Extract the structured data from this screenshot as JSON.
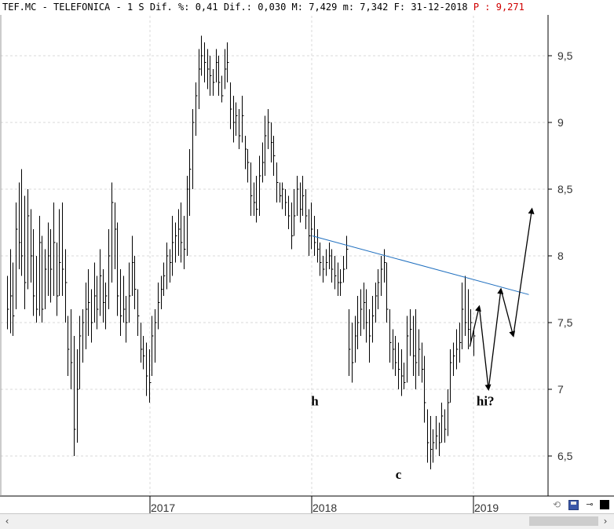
{
  "header": {
    "ticker": "TEF.MC - TELEFONICA -",
    "period": "1 S",
    "dif_pct_label": "Dif. %:",
    "dif_pct": "0,41",
    "dif_label": "Dif.:",
    "dif": "0,030",
    "max_label": "M:",
    "max": "7,429",
    "min_label": "m:",
    "min": "7,342",
    "date_label": "F:",
    "date": "31-12-2018",
    "p_label": "P :",
    "p_value": "9,271"
  },
  "icons": {
    "refresh": "refresh-icon",
    "save": "save-icon",
    "pin": "pin-icon",
    "black": "color-square-icon",
    "scroll_left": "chevron-left-icon",
    "scroll_right": "chevron-right-icon"
  },
  "glyphs": {
    "scroll_left": "‹",
    "scroll_right": "›",
    "refresh": "⟲",
    "pin": "⊸"
  },
  "chart_data": {
    "type": "bar",
    "subtype": "ohlc-weekly",
    "x_ticks": [
      "2017",
      "2018",
      "2019"
    ],
    "y_ticks": [
      "6,5",
      "7",
      "7,5",
      "8",
      "8,5",
      "9",
      "9,5"
    ],
    "y_tick_values": [
      6.5,
      7,
      7.5,
      8,
      8.5,
      9,
      9.5
    ],
    "ylim": [
      6.22,
      9.85
    ],
    "grid": true,
    "colors": {
      "bars": "#000000",
      "trendline": "#1f6fbf",
      "grid": "#d8d8d8"
    },
    "year_boundaries": [
      2017,
      2018,
      2019
    ],
    "date_range": [
      "2016-04",
      "2019-05"
    ],
    "weekly_bars": [
      [
        7.85,
        7.45,
        7.6
      ],
      [
        8.05,
        7.42,
        7.7
      ],
      [
        7.95,
        7.4,
        7.55
      ],
      [
        8.4,
        7.6,
        8.2
      ],
      [
        8.55,
        7.9,
        8.1
      ],
      [
        8.65,
        7.85,
        8.0
      ],
      [
        8.45,
        7.6,
        7.8
      ],
      [
        8.5,
        7.75,
        8.3
      ],
      [
        8.35,
        7.8,
        8.0
      ],
      [
        8.2,
        7.55,
        7.7
      ],
      [
        8.0,
        7.5,
        7.6
      ],
      [
        8.3,
        7.55,
        8.1
      ],
      [
        8.15,
        7.5,
        7.6
      ],
      [
        8.05,
        7.6,
        7.9
      ],
      [
        8.25,
        7.7,
        8.0
      ],
      [
        8.2,
        7.65,
        7.9
      ],
      [
        8.4,
        7.7,
        8.1
      ],
      [
        8.1,
        7.55,
        7.7
      ],
      [
        8.35,
        7.7,
        7.95
      ],
      [
        8.4,
        7.7,
        7.9
      ],
      [
        8.05,
        7.5,
        7.8
      ],
      [
        7.55,
        7.1,
        7.3
      ],
      [
        7.6,
        7.0,
        7.2
      ],
      [
        7.4,
        6.5,
        6.7
      ],
      [
        7.3,
        6.6,
        7.0
      ],
      [
        7.55,
        7.0,
        7.4
      ],
      [
        7.6,
        7.2,
        7.5
      ],
      [
        7.8,
        7.3,
        7.6
      ],
      [
        7.9,
        7.4,
        7.65
      ],
      [
        7.75,
        7.35,
        7.5
      ],
      [
        7.95,
        7.5,
        7.7
      ],
      [
        7.85,
        7.45,
        7.6
      ],
      [
        8.05,
        7.55,
        7.85
      ],
      [
        7.9,
        7.5,
        7.65
      ],
      [
        7.8,
        7.45,
        7.7
      ],
      [
        8.2,
        7.6,
        8.0
      ],
      [
        8.55,
        7.8,
        8.4
      ],
      [
        8.4,
        7.9,
        8.2
      ],
      [
        8.25,
        7.55,
        7.7
      ],
      [
        7.9,
        7.4,
        7.55
      ],
      [
        7.85,
        7.5,
        7.6
      ],
      [
        7.7,
        7.35,
        7.5
      ],
      [
        7.95,
        7.5,
        7.7
      ],
      [
        8.15,
        7.7,
        7.95
      ],
      [
        8.0,
        7.6,
        7.75
      ],
      [
        7.75,
        7.4,
        7.55
      ],
      [
        7.5,
        7.2,
        7.3
      ],
      [
        7.4,
        7.15,
        7.25
      ],
      [
        7.35,
        6.95,
        7.1
      ],
      [
        7.3,
        6.9,
        7.05
      ],
      [
        7.55,
        7.1,
        7.4
      ],
      [
        7.6,
        7.2,
        7.5
      ],
      [
        7.8,
        7.45,
        7.65
      ],
      [
        7.85,
        7.6,
        7.75
      ],
      [
        7.95,
        7.7,
        7.85
      ],
      [
        8.1,
        7.75,
        8.0
      ],
      [
        8.05,
        7.8,
        7.95
      ],
      [
        8.3,
        7.85,
        8.1
      ],
      [
        8.25,
        7.95,
        8.15
      ],
      [
        8.35,
        8.0,
        8.2
      ],
      [
        8.4,
        7.95,
        8.1
      ],
      [
        8.3,
        7.9,
        8.05
      ],
      [
        8.6,
        8.0,
        8.5
      ],
      [
        8.8,
        8.3,
        8.65
      ],
      [
        9.1,
        8.5,
        9.0
      ],
      [
        9.3,
        8.9,
        9.2
      ],
      [
        9.55,
        9.1,
        9.4
      ],
      [
        9.65,
        9.35,
        9.5
      ],
      [
        9.6,
        9.3,
        9.45
      ],
      [
        9.55,
        9.25,
        9.4
      ],
      [
        9.5,
        9.2,
        9.35
      ],
      [
        9.4,
        9.2,
        9.3
      ],
      [
        9.55,
        9.3,
        9.45
      ],
      [
        9.5,
        9.2,
        9.3
      ],
      [
        9.35,
        9.15,
        9.2
      ],
      [
        9.55,
        9.25,
        9.4
      ],
      [
        9.6,
        9.3,
        9.45
      ],
      [
        9.3,
        8.95,
        9.1
      ],
      [
        9.2,
        8.85,
        9.0
      ],
      [
        9.15,
        8.9,
        9.05
      ],
      [
        9.1,
        8.8,
        8.9
      ],
      [
        9.2,
        8.85,
        9.05
      ],
      [
        8.9,
        8.65,
        8.8
      ],
      [
        8.8,
        8.55,
        8.7
      ],
      [
        8.7,
        8.3,
        8.45
      ],
      [
        8.55,
        8.3,
        8.4
      ],
      [
        8.6,
        8.25,
        8.35
      ],
      [
        8.75,
        8.3,
        8.6
      ],
      [
        8.85,
        8.55,
        8.7
      ],
      [
        9.05,
        8.6,
        8.9
      ],
      [
        9.1,
        8.8,
        9.0
      ],
      [
        9.0,
        8.7,
        8.85
      ],
      [
        8.9,
        8.6,
        8.75
      ],
      [
        8.7,
        8.4,
        8.55
      ],
      [
        8.55,
        8.4,
        8.45
      ],
      [
        8.55,
        8.35,
        8.5
      ],
      [
        8.5,
        8.3,
        8.4
      ],
      [
        8.45,
        8.2,
        8.3
      ],
      [
        8.4,
        8.05,
        8.15
      ],
      [
        8.5,
        8.15,
        8.3
      ],
      [
        8.6,
        8.3,
        8.5
      ],
      [
        8.55,
        8.25,
        8.35
      ],
      [
        8.6,
        8.3,
        8.45
      ],
      [
        8.5,
        8.2,
        8.3
      ],
      [
        8.35,
        8.0,
        8.15
      ],
      [
        8.4,
        8.05,
        8.2
      ],
      [
        8.3,
        8.0,
        8.1
      ],
      [
        8.2,
        7.95,
        8.05
      ],
      [
        8.1,
        7.85,
        7.95
      ],
      [
        8.0,
        7.8,
        7.9
      ],
      [
        8.05,
        7.85,
        7.95
      ],
      [
        8.1,
        7.9,
        8.0
      ],
      [
        8.05,
        7.8,
        7.9
      ],
      [
        8.0,
        7.75,
        7.85
      ],
      [
        7.95,
        7.7,
        7.8
      ],
      [
        7.9,
        7.7,
        7.8
      ],
      [
        8.0,
        7.8,
        7.9
      ],
      [
        8.15,
        7.9,
        8.05
      ],
      [
        7.6,
        7.1,
        7.3
      ],
      [
        7.5,
        7.05,
        7.2
      ],
      [
        7.55,
        7.2,
        7.4
      ],
      [
        7.7,
        7.3,
        7.5
      ],
      [
        7.75,
        7.4,
        7.6
      ],
      [
        7.8,
        7.45,
        7.65
      ],
      [
        7.75,
        7.35,
        7.5
      ],
      [
        7.6,
        7.2,
        7.4
      ],
      [
        7.7,
        7.35,
        7.55
      ],
      [
        7.8,
        7.5,
        7.7
      ],
      [
        7.9,
        7.6,
        7.8
      ],
      [
        8.0,
        7.7,
        7.9
      ],
      [
        8.05,
        7.8,
        7.95
      ],
      [
        7.95,
        7.5,
        7.6
      ],
      [
        7.6,
        7.2,
        7.35
      ],
      [
        7.45,
        7.15,
        7.3
      ],
      [
        7.4,
        7.1,
        7.2
      ],
      [
        7.35,
        7.0,
        7.15
      ],
      [
        7.3,
        6.95,
        7.1
      ],
      [
        7.2,
        7.0,
        7.05
      ],
      [
        7.55,
        7.05,
        7.4
      ],
      [
        7.6,
        7.25,
        7.45
      ],
      [
        7.55,
        7.1,
        7.25
      ],
      [
        7.6,
        7.0,
        7.2
      ],
      [
        7.45,
        7.1,
        7.3
      ],
      [
        7.35,
        7.05,
        7.15
      ],
      [
        7.25,
        6.75,
        6.9
      ],
      [
        6.85,
        6.45,
        6.6
      ],
      [
        6.8,
        6.4,
        6.55
      ],
      [
        6.7,
        6.45,
        6.6
      ],
      [
        6.8,
        6.55,
        6.65
      ],
      [
        6.75,
        6.5,
        6.6
      ],
      [
        6.9,
        6.6,
        6.8
      ],
      [
        6.85,
        6.6,
        6.7
      ],
      [
        7.0,
        6.65,
        6.9
      ],
      [
        7.3,
        6.9,
        7.2
      ],
      [
        7.35,
        7.1,
        7.25
      ],
      [
        7.45,
        7.15,
        7.3
      ],
      [
        7.5,
        7.2,
        7.35
      ],
      [
        7.8,
        7.3,
        7.6
      ],
      [
        7.85,
        7.4,
        7.5
      ],
      [
        7.75,
        7.3,
        7.45
      ],
      [
        7.6,
        7.35,
        7.5
      ],
      [
        7.45,
        7.25,
        7.4
      ]
    ],
    "trendline": {
      "from": [
        "2018-01-02",
        8.15
      ],
      "to": [
        "2019-05-06",
        7.71
      ]
    },
    "forecast_path": [
      [
        "2018-12-24",
        7.32
      ],
      [
        "2019-01-14",
        7.62
      ],
      [
        "2019-02-04",
        7.0
      ],
      [
        "2019-03-04",
        7.75
      ],
      [
        "2019-04-01",
        7.4
      ],
      [
        "2019-05-13",
        8.35
      ]
    ],
    "annotations": [
      {
        "text": "h",
        "x": "2018-01-08",
        "y": 6.88
      },
      {
        "text": "c",
        "x": "2018-07-16",
        "y": 6.33
      },
      {
        "text": "hi?",
        "x": "2019-01-28",
        "y": 6.88
      }
    ]
  }
}
